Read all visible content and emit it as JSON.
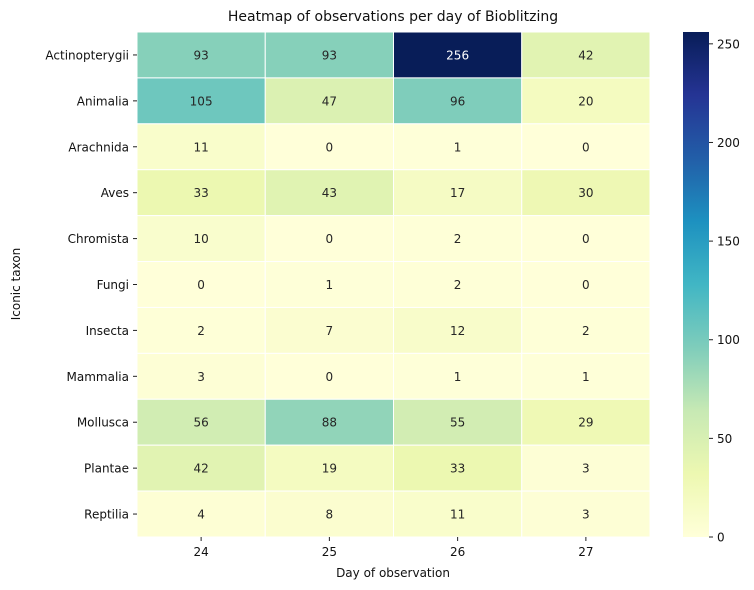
{
  "chart_data": {
    "type": "heatmap",
    "title": "Heatmap of observations per day of Bioblitzing",
    "xlabel": "Day of observation",
    "ylabel": "Iconic taxon",
    "x_categories": [
      "24",
      "25",
      "26",
      "27"
    ],
    "y_categories": [
      "Actinopterygii",
      "Animalia",
      "Arachnida",
      "Aves",
      "Chromista",
      "Fungi",
      "Insecta",
      "Mammalia",
      "Mollusca",
      "Plantae",
      "Reptilia"
    ],
    "values": [
      [
        93,
        93,
        256,
        42
      ],
      [
        105,
        47,
        96,
        20
      ],
      [
        11,
        0,
        1,
        0
      ],
      [
        33,
        43,
        17,
        30
      ],
      [
        10,
        0,
        2,
        0
      ],
      [
        0,
        1,
        2,
        0
      ],
      [
        2,
        7,
        12,
        2
      ],
      [
        3,
        0,
        1,
        1
      ],
      [
        56,
        88,
        55,
        29
      ],
      [
        42,
        19,
        33,
        3
      ],
      [
        4,
        8,
        11,
        3
      ]
    ],
    "colormap": "YlGnBu",
    "vmin": 0,
    "vmax": 256,
    "colorbar_ticks": [
      "0",
      "50",
      "100",
      "150",
      "200",
      "250"
    ],
    "colorbar_tick_values": [
      0,
      50,
      100,
      150,
      200,
      250
    ],
    "annotated": true
  }
}
